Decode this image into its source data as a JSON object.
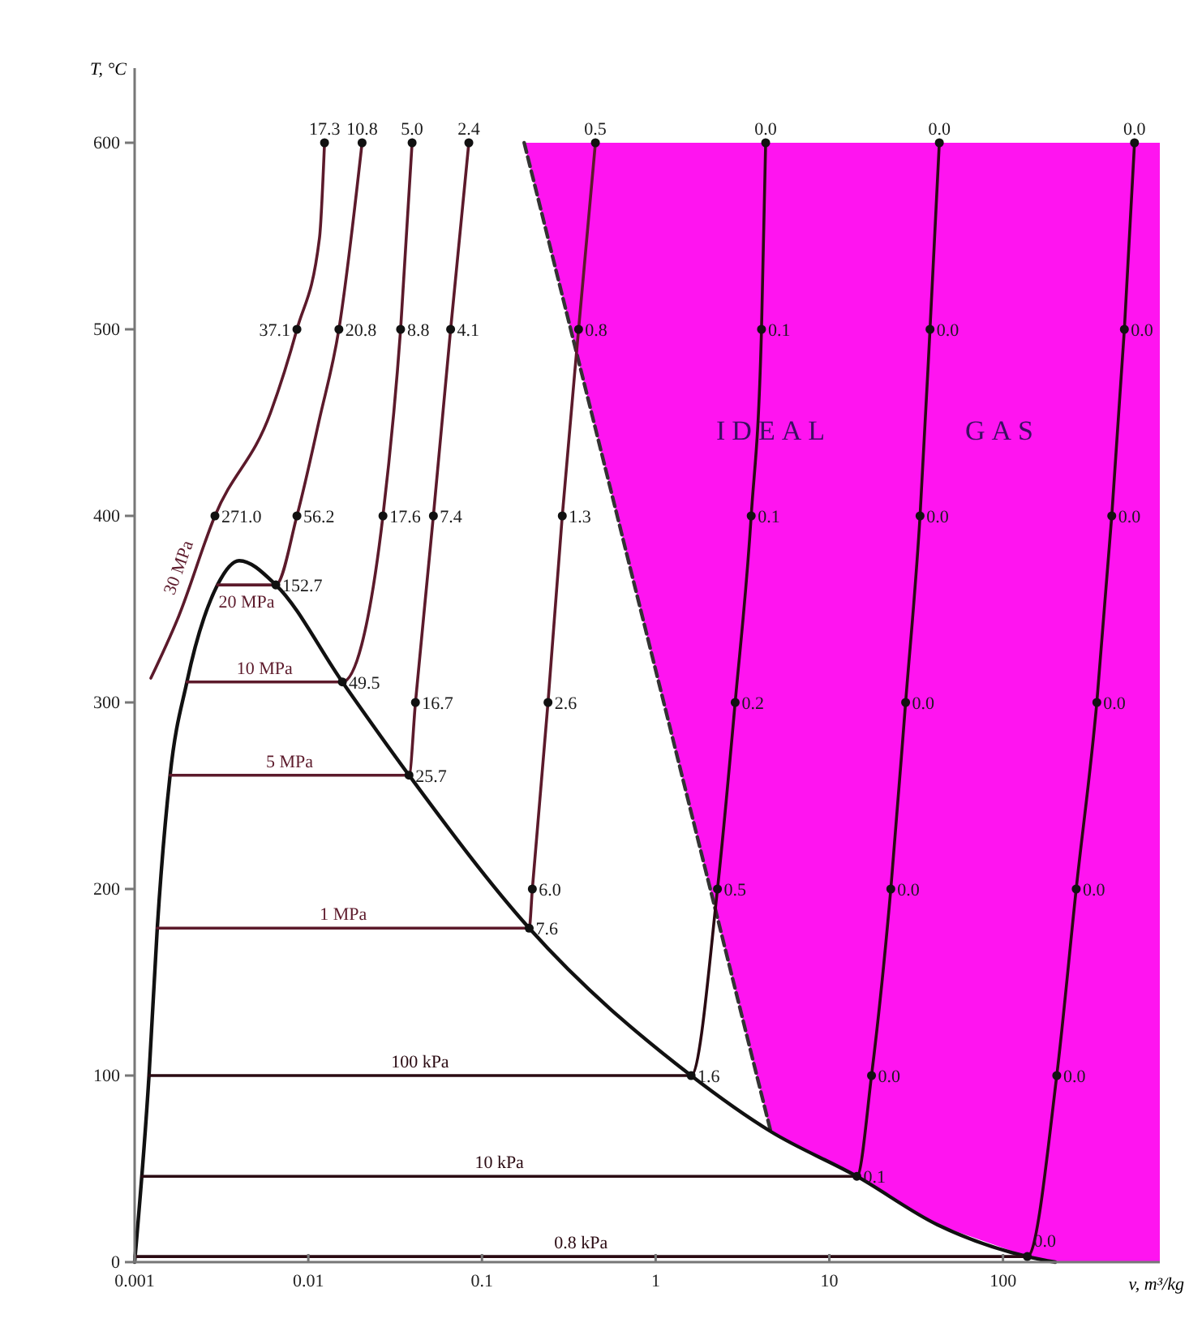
{
  "chart_data": {
    "type": "line",
    "log": "x",
    "xlabel": "v, m³/kg",
    "ylabel": "T, °C",
    "xlim": [
      0.001,
      800
    ],
    "xticks": [
      0.001,
      0.01,
      0.1,
      1,
      10,
      100
    ],
    "ylim": [
      0,
      640
    ],
    "yticks": [
      0,
      100,
      200,
      300,
      400,
      500,
      600
    ],
    "annotations": [
      "IDEAL",
      "GAS",
      {
        "text": "271.0",
        "x": 0.0029,
        "y": 400
      },
      {
        "text": "37.1",
        "x": 0.0086,
        "y": 500
      },
      {
        "text": "17.3",
        "x": 0.0124,
        "y": 600
      },
      {
        "text": "152.7",
        "x": 0.0065,
        "y": 363
      },
      {
        "text": "56.2",
        "x": 0.0086,
        "y": 400
      },
      {
        "text": "20.8",
        "x": 0.015,
        "y": 500
      },
      {
        "text": "10.8",
        "x": 0.0204,
        "y": 600
      },
      {
        "text": "49.5",
        "x": 0.0157,
        "y": 311
      },
      {
        "text": "17.6",
        "x": 0.0269,
        "y": 400
      },
      {
        "text": "8.8",
        "x": 0.034,
        "y": 500
      },
      {
        "text": "5.0",
        "x": 0.0396,
        "y": 600
      },
      {
        "text": "25.7",
        "x": 0.038,
        "y": 261
      },
      {
        "text": "16.7",
        "x": 0.0414,
        "y": 300
      },
      {
        "text": "7.4",
        "x": 0.0525,
        "y": 400
      },
      {
        "text": "4.1",
        "x": 0.066,
        "y": 500
      },
      {
        "text": "2.4",
        "x": 0.084,
        "y": 600
      },
      {
        "text": "7.6",
        "x": 0.187,
        "y": 179
      },
      {
        "text": "6.0",
        "x": 0.195,
        "y": 200
      },
      {
        "text": "2.6",
        "x": 0.24,
        "y": 300
      },
      {
        "text": "1.3",
        "x": 0.29,
        "y": 400
      },
      {
        "text": "0.8",
        "x": 0.36,
        "y": 500
      },
      {
        "text": "0.5",
        "x": 0.45,
        "y": 600
      },
      {
        "text": "1.6",
        "x": 1.6,
        "y": 100
      },
      {
        "text": "0.5",
        "x": 2.27,
        "y": 200
      },
      {
        "text": "0.2",
        "x": 2.87,
        "y": 300
      },
      {
        "text": "0.1",
        "x": 3.55,
        "y": 400
      },
      {
        "text": "0.1",
        "x": 4.07,
        "y": 500
      },
      {
        "text": "0.0",
        "x": 4.3,
        "y": 600
      },
      {
        "text": "0.1",
        "x": 14.4,
        "y": 46
      },
      {
        "text": "0.0",
        "x": 17.5,
        "y": 100
      },
      {
        "text": "0.0",
        "x": 22.6,
        "y": 200
      },
      {
        "text": "0.0",
        "x": 27.5,
        "y": 300
      },
      {
        "text": "0.0",
        "x": 33.3,
        "y": 400
      },
      {
        "text": "0.0",
        "x": 38,
        "y": 500
      },
      {
        "text": "0.0",
        "x": 43,
        "y": 600
      },
      {
        "text": "0.0",
        "x": 138,
        "y": 3
      },
      {
        "text": "0.0",
        "x": 204,
        "y": 100
      },
      {
        "text": "0.0",
        "x": 264,
        "y": 200
      },
      {
        "text": "0.0",
        "x": 347,
        "y": 300
      },
      {
        "text": "0.0",
        "x": 423,
        "y": 400
      },
      {
        "text": "0.0",
        "x": 500,
        "y": 500
      },
      {
        "text": "0.0",
        "x": 572,
        "y": 600
      }
    ],
    "series": [
      {
        "type": "line",
        "color": "#333333",
        "line_style": "dashed",
        "x": [
          0.175,
          4.6
        ],
        "values": [
          600,
          70
        ]
      },
      {
        "type": "line",
        "color": "#111111",
        "x": [
          0.001,
          0.00121,
          0.00135,
          0.0016,
          0.002,
          0.003,
          0.004,
          0.0065,
          0.0157,
          0.038,
          0.187,
          1.6,
          4.6,
          14.4,
          42,
          138,
          200
        ],
        "values": [
          0,
          100,
          179,
          261,
          311,
          363,
          376,
          363,
          311,
          261,
          179,
          100,
          70,
          46,
          20,
          3,
          0
        ]
      },
      {
        "type": "line",
        "name": "30 MPa",
        "color": "#5c1a2b",
        "x": [
          0.00124,
          0.00179,
          0.0029,
          0.0061,
          0.0086,
          0.0116,
          0.0124
        ],
        "values": [
          313,
          346,
          400,
          456,
          500,
          549,
          600
        ]
      },
      {
        "type": "line",
        "name": "20 MPa",
        "color": "#5c1a2b",
        "x": [
          0.003,
          0.0065,
          0.0086,
          0.0116,
          0.015,
          0.0204
        ],
        "values": [
          363,
          363,
          400,
          452,
          500,
          600
        ]
      },
      {
        "type": "line",
        "name": "10 MPa",
        "color": "#5c1a2b",
        "x": [
          0.002,
          0.0157,
          0.0203,
          0.0269,
          0.034,
          0.0396
        ],
        "values": [
          311,
          311,
          331,
          400,
          500,
          600
        ]
      },
      {
        "type": "line",
        "name": "5 MPa",
        "color": "#5c1a2b",
        "x": [
          0.0016,
          0.038,
          0.0414,
          0.0525,
          0.066,
          0.084
        ],
        "values": [
          261,
          261,
          300,
          400,
          500,
          600
        ]
      },
      {
        "type": "line",
        "name": "1 MPa",
        "color": "#5c1a2b",
        "x": [
          0.00135,
          0.187,
          0.195,
          0.24,
          0.29,
          0.36,
          0.45
        ],
        "values": [
          179,
          179,
          200,
          300,
          400,
          500,
          600
        ]
      },
      {
        "type": "line",
        "name": "100 kPa",
        "color": "#2a0a12",
        "x": [
          0.00121,
          1.6,
          2.27,
          2.87,
          3.55,
          4.07,
          4.3
        ],
        "values": [
          100,
          100,
          200,
          300,
          400,
          500,
          600
        ]
      },
      {
        "type": "line",
        "name": "10 kPa",
        "color": "#2a0a12",
        "x": [
          0.0011,
          14.4,
          17.5,
          22.6,
          27.5,
          33.3,
          38,
          43
        ],
        "values": [
          46,
          46,
          100,
          200,
          300,
          400,
          500,
          600
        ]
      },
      {
        "type": "line",
        "name": "0.8 kPa",
        "color": "#2a0a12",
        "x": [
          0.001,
          138,
          204,
          264,
          347,
          423,
          500,
          572
        ],
        "values": [
          3,
          3,
          100,
          200,
          300,
          400,
          500,
          600
        ]
      },
      {
        "type": "scatter",
        "color": "#111111",
        "marker": "circle",
        "x": [
          0.0029,
          0.0086,
          0.0124,
          0.0065,
          0.0086,
          0.015,
          0.0204,
          0.0157,
          0.0269,
          0.034,
          0.0396,
          0.038,
          0.0414,
          0.0525,
          0.066,
          0.084,
          0.187,
          0.195,
          0.24,
          0.29,
          0.36,
          0.45,
          1.6,
          2.27,
          2.87,
          3.55,
          4.07,
          4.3,
          14.4,
          17.5,
          22.6,
          27.5,
          33.3,
          38,
          43,
          138,
          204,
          264,
          347,
          423,
          500,
          572
        ],
        "values": [
          400,
          500,
          600,
          363,
          400,
          500,
          600,
          311,
          400,
          500,
          600,
          261,
          300,
          400,
          500,
          600,
          179,
          200,
          300,
          400,
          500,
          600,
          100,
          200,
          300,
          400,
          500,
          600,
          46,
          100,
          200,
          300,
          400,
          500,
          600,
          3,
          100,
          200,
          300,
          400,
          500,
          600
        ]
      }
    ]
  }
}
